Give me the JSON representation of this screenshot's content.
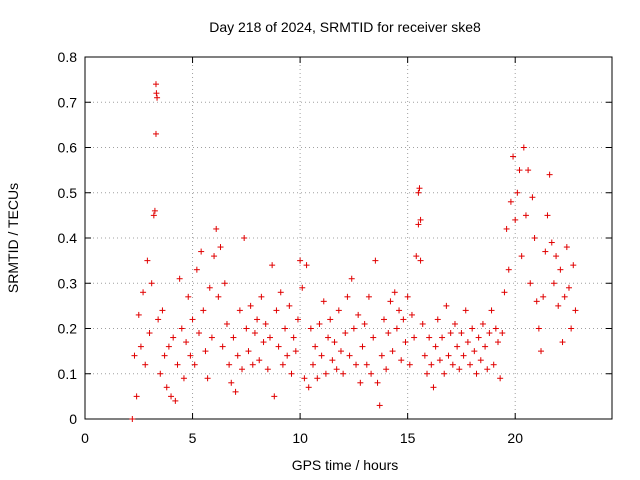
{
  "chart_data": {
    "type": "scatter",
    "title": "Day 218 of 2024, SRMTID for receiver ske8",
    "xlabel": "GPS time / hours",
    "ylabel": "SRMTID / TECUs",
    "xlim": [
      0,
      24.5
    ],
    "ylim": [
      0,
      0.8
    ],
    "x_ticks": [
      0,
      5,
      10,
      15,
      20
    ],
    "x_tick_labels": [
      "0",
      "5",
      "10",
      "15",
      "20"
    ],
    "y_ticks": [
      0,
      0.1,
      0.2,
      0.3,
      0.4,
      0.5,
      0.6,
      0.7,
      0.8
    ],
    "y_tick_labels": [
      "0",
      "0.1",
      "0.2",
      "0.3",
      "0.4",
      "0.5",
      "0.6",
      "0.7",
      "0.8"
    ],
    "grid": true,
    "marker": "+",
    "series_color": "#e00000",
    "series": [
      {
        "name": "SRMTID",
        "points": [
          [
            2.2,
            0.0
          ],
          [
            2.3,
            0.14
          ],
          [
            2.4,
            0.05
          ],
          [
            2.5,
            0.23
          ],
          [
            2.6,
            0.16
          ],
          [
            2.7,
            0.28
          ],
          [
            2.8,
            0.12
          ],
          [
            2.9,
            0.35
          ],
          [
            3.0,
            0.19
          ],
          [
            3.1,
            0.3
          ],
          [
            3.2,
            0.45
          ],
          [
            3.25,
            0.46
          ],
          [
            3.3,
            0.74
          ],
          [
            3.32,
            0.72
          ],
          [
            3.35,
            0.71
          ],
          [
            3.3,
            0.63
          ],
          [
            3.4,
            0.22
          ],
          [
            3.5,
            0.1
          ],
          [
            3.6,
            0.24
          ],
          [
            3.7,
            0.14
          ],
          [
            3.8,
            0.07
          ],
          [
            3.9,
            0.16
          ],
          [
            4.0,
            0.05
          ],
          [
            4.1,
            0.18
          ],
          [
            4.2,
            0.04
          ],
          [
            4.3,
            0.12
          ],
          [
            4.4,
            0.31
          ],
          [
            4.5,
            0.2
          ],
          [
            4.6,
            0.09
          ],
          [
            4.7,
            0.17
          ],
          [
            4.8,
            0.27
          ],
          [
            4.9,
            0.14
          ],
          [
            5.0,
            0.22
          ],
          [
            5.1,
            0.12
          ],
          [
            5.2,
            0.33
          ],
          [
            5.3,
            0.19
          ],
          [
            5.4,
            0.37
          ],
          [
            5.5,
            0.24
          ],
          [
            5.6,
            0.15
          ],
          [
            5.7,
            0.09
          ],
          [
            5.8,
            0.29
          ],
          [
            5.9,
            0.18
          ],
          [
            6.0,
            0.36
          ],
          [
            6.1,
            0.42
          ],
          [
            6.2,
            0.27
          ],
          [
            6.3,
            0.38
          ],
          [
            6.4,
            0.16
          ],
          [
            6.5,
            0.3
          ],
          [
            6.6,
            0.21
          ],
          [
            6.7,
            0.12
          ],
          [
            6.8,
            0.08
          ],
          [
            6.9,
            0.18
          ],
          [
            7.0,
            0.06
          ],
          [
            7.1,
            0.14
          ],
          [
            7.2,
            0.24
          ],
          [
            7.3,
            0.11
          ],
          [
            7.4,
            0.4
          ],
          [
            7.5,
            0.2
          ],
          [
            7.6,
            0.15
          ],
          [
            7.7,
            0.25
          ],
          [
            7.8,
            0.12
          ],
          [
            7.9,
            0.19
          ],
          [
            8.0,
            0.22
          ],
          [
            8.1,
            0.13
          ],
          [
            8.2,
            0.27
          ],
          [
            8.3,
            0.17
          ],
          [
            8.4,
            0.21
          ],
          [
            8.5,
            0.11
          ],
          [
            8.6,
            0.18
          ],
          [
            8.7,
            0.34
          ],
          [
            8.8,
            0.05
          ],
          [
            8.9,
            0.24
          ],
          [
            9.0,
            0.16
          ],
          [
            9.1,
            0.28
          ],
          [
            9.2,
            0.12
          ],
          [
            9.3,
            0.2
          ],
          [
            9.4,
            0.14
          ],
          [
            9.5,
            0.25
          ],
          [
            9.6,
            0.1
          ],
          [
            9.7,
            0.18
          ],
          [
            9.8,
            0.15
          ],
          [
            9.9,
            0.22
          ],
          [
            10.0,
            0.35
          ],
          [
            10.1,
            0.29
          ],
          [
            10.2,
            0.09
          ],
          [
            10.3,
            0.34
          ],
          [
            10.4,
            0.07
          ],
          [
            10.5,
            0.2
          ],
          [
            10.6,
            0.12
          ],
          [
            10.7,
            0.16
          ],
          [
            10.8,
            0.09
          ],
          [
            10.9,
            0.21
          ],
          [
            11.0,
            0.14
          ],
          [
            11.1,
            0.26
          ],
          [
            11.2,
            0.1
          ],
          [
            11.3,
            0.18
          ],
          [
            11.4,
            0.22
          ],
          [
            11.5,
            0.13
          ],
          [
            11.6,
            0.17
          ],
          [
            11.7,
            0.11
          ],
          [
            11.8,
            0.24
          ],
          [
            11.9,
            0.15
          ],
          [
            12.0,
            0.1
          ],
          [
            12.1,
            0.19
          ],
          [
            12.2,
            0.27
          ],
          [
            12.3,
            0.14
          ],
          [
            12.4,
            0.31
          ],
          [
            12.5,
            0.2
          ],
          [
            12.6,
            0.12
          ],
          [
            12.7,
            0.23
          ],
          [
            12.8,
            0.08
          ],
          [
            12.9,
            0.16
          ],
          [
            13.0,
            0.21
          ],
          [
            13.1,
            0.12
          ],
          [
            13.2,
            0.27
          ],
          [
            13.3,
            0.1
          ],
          [
            13.4,
            0.18
          ],
          [
            13.5,
            0.35
          ],
          [
            13.6,
            0.08
          ],
          [
            13.7,
            0.03
          ],
          [
            13.8,
            0.14
          ],
          [
            13.9,
            0.22
          ],
          [
            14.0,
            0.11
          ],
          [
            14.1,
            0.19
          ],
          [
            14.2,
            0.26
          ],
          [
            14.3,
            0.15
          ],
          [
            14.4,
            0.28
          ],
          [
            14.5,
            0.2
          ],
          [
            14.6,
            0.24
          ],
          [
            14.7,
            0.13
          ],
          [
            14.8,
            0.22
          ],
          [
            14.9,
            0.17
          ],
          [
            15.0,
            0.27
          ],
          [
            15.1,
            0.12
          ],
          [
            15.2,
            0.23
          ],
          [
            15.3,
            0.18
          ],
          [
            15.4,
            0.36
          ],
          [
            15.5,
            0.5
          ],
          [
            15.55,
            0.51
          ],
          [
            15.6,
            0.44
          ],
          [
            15.5,
            0.43
          ],
          [
            15.6,
            0.35
          ],
          [
            15.7,
            0.21
          ],
          [
            15.8,
            0.14
          ],
          [
            15.9,
            0.1
          ],
          [
            16.0,
            0.18
          ],
          [
            16.1,
            0.12
          ],
          [
            16.2,
            0.07
          ],
          [
            16.3,
            0.16
          ],
          [
            16.4,
            0.22
          ],
          [
            16.5,
            0.13
          ],
          [
            16.6,
            0.18
          ],
          [
            16.7,
            0.1
          ],
          [
            16.8,
            0.25
          ],
          [
            16.9,
            0.14
          ],
          [
            17.0,
            0.19
          ],
          [
            17.1,
            0.12
          ],
          [
            17.2,
            0.21
          ],
          [
            17.3,
            0.16
          ],
          [
            17.4,
            0.11
          ],
          [
            17.5,
            0.19
          ],
          [
            17.6,
            0.14
          ],
          [
            17.7,
            0.24
          ],
          [
            17.8,
            0.17
          ],
          [
            17.9,
            0.12
          ],
          [
            18.0,
            0.2
          ],
          [
            18.1,
            0.15
          ],
          [
            18.2,
            0.1
          ],
          [
            18.3,
            0.18
          ],
          [
            18.4,
            0.13
          ],
          [
            18.5,
            0.21
          ],
          [
            18.6,
            0.16
          ],
          [
            18.7,
            0.11
          ],
          [
            18.8,
            0.19
          ],
          [
            18.9,
            0.24
          ],
          [
            19.0,
            0.12
          ],
          [
            19.1,
            0.2
          ],
          [
            19.2,
            0.17
          ],
          [
            19.3,
            0.09
          ],
          [
            19.4,
            0.19
          ],
          [
            19.5,
            0.28
          ],
          [
            19.6,
            0.42
          ],
          [
            19.7,
            0.33
          ],
          [
            19.8,
            0.48
          ],
          [
            19.9,
            0.58
          ],
          [
            20.0,
            0.44
          ],
          [
            20.1,
            0.5
          ],
          [
            20.2,
            0.55
          ],
          [
            20.3,
            0.36
          ],
          [
            20.4,
            0.6
          ],
          [
            20.5,
            0.45
          ],
          [
            20.6,
            0.55
          ],
          [
            20.7,
            0.3
          ],
          [
            20.8,
            0.49
          ],
          [
            20.9,
            0.4
          ],
          [
            21.0,
            0.26
          ],
          [
            21.1,
            0.2
          ],
          [
            21.2,
            0.15
          ],
          [
            21.3,
            0.27
          ],
          [
            21.4,
            0.37
          ],
          [
            21.5,
            0.45
          ],
          [
            21.6,
            0.54
          ],
          [
            21.7,
            0.39
          ],
          [
            21.8,
            0.3
          ],
          [
            21.9,
            0.36
          ],
          [
            22.0,
            0.25
          ],
          [
            22.1,
            0.33
          ],
          [
            22.2,
            0.17
          ],
          [
            22.3,
            0.27
          ],
          [
            22.4,
            0.38
          ],
          [
            22.5,
            0.29
          ],
          [
            22.6,
            0.2
          ],
          [
            22.7,
            0.34
          ],
          [
            22.8,
            0.24
          ]
        ]
      }
    ]
  }
}
